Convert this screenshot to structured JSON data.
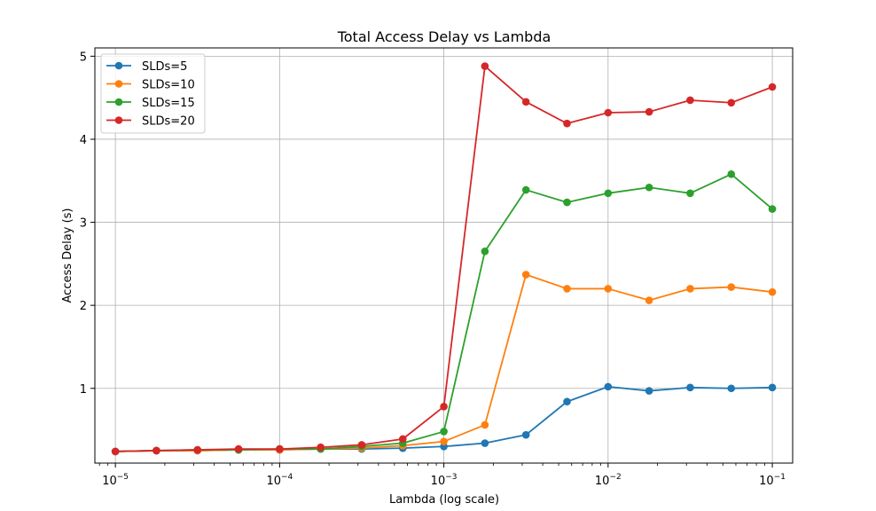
{
  "chart_data": {
    "type": "line",
    "title": "Total Access Delay vs Lambda",
    "xlabel": "Lambda (log scale)",
    "ylabel": "Access Delay (s)",
    "xscale": "log",
    "xlim": [
      7.5e-06,
      0.133
    ],
    "ylim": [
      0.1,
      5.1
    ],
    "grid": true,
    "legend_position": "top-left",
    "x_ticks": [
      {
        "value": 1e-05,
        "base": "10",
        "exp": "−5"
      },
      {
        "value": 0.0001,
        "base": "10",
        "exp": "−4"
      },
      {
        "value": 0.001,
        "base": "10",
        "exp": "−3"
      },
      {
        "value": 0.01,
        "base": "10",
        "exp": "−2"
      },
      {
        "value": 0.1,
        "base": "10",
        "exp": "−1"
      }
    ],
    "y_ticks": [
      {
        "value": 1,
        "label": "1"
      },
      {
        "value": 2,
        "label": "2"
      },
      {
        "value": 3,
        "label": "3"
      },
      {
        "value": 4,
        "label": "4"
      },
      {
        "value": 5,
        "label": "5"
      }
    ],
    "x": [
      1e-05,
      1.778e-05,
      3.162e-05,
      5.623e-05,
      0.0001,
      0.0001778,
      0.0003162,
      0.0005623,
      0.001,
      0.001778,
      0.003162,
      0.005623,
      0.01,
      0.01778,
      0.03162,
      0.05623,
      0.1
    ],
    "series": [
      {
        "name": "SLDs=5",
        "color": "#1f77b4",
        "values": [
          0.24,
          0.25,
          0.25,
          0.26,
          0.26,
          0.27,
          0.27,
          0.28,
          0.3,
          0.34,
          0.44,
          0.84,
          1.02,
          0.97,
          1.01,
          1.0,
          1.01
        ]
      },
      {
        "name": "SLDs=10",
        "color": "#ff7f0e",
        "values": [
          0.24,
          0.25,
          0.25,
          0.26,
          0.26,
          0.27,
          0.28,
          0.31,
          0.36,
          0.56,
          2.37,
          2.2,
          2.2,
          2.06,
          2.2,
          2.22,
          2.16
        ]
      },
      {
        "name": "SLDs=15",
        "color": "#2ca02c",
        "values": [
          0.24,
          0.25,
          0.26,
          0.26,
          0.27,
          0.27,
          0.3,
          0.34,
          0.48,
          2.65,
          3.39,
          3.24,
          3.35,
          3.42,
          3.35,
          3.58,
          3.16
        ]
      },
      {
        "name": "SLDs=20",
        "color": "#d62728",
        "values": [
          0.24,
          0.25,
          0.26,
          0.27,
          0.27,
          0.29,
          0.32,
          0.39,
          0.78,
          4.88,
          4.45,
          4.19,
          4.32,
          4.33,
          4.47,
          4.44,
          4.63
        ]
      }
    ]
  }
}
